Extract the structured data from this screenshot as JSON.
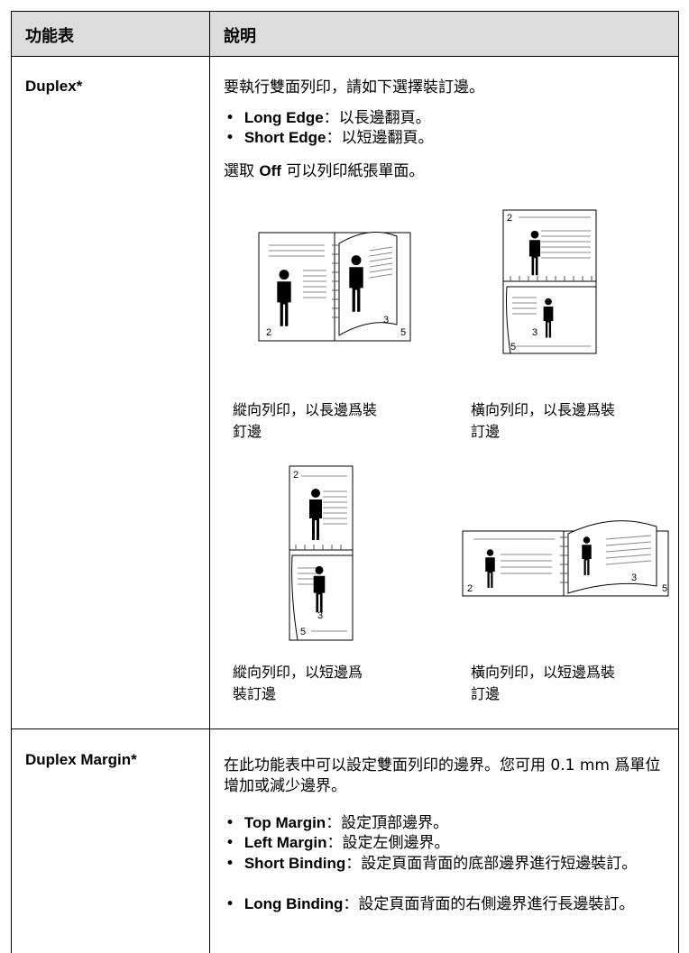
{
  "table": {
    "headers": [
      "功能表",
      "說明"
    ],
    "rows": [
      {
        "feature": "Duplex*",
        "intro": "要執行雙面列印，請如下選擇裝訂邊。",
        "bullets": [
          {
            "term": "Long Edge",
            "text": "：以長邊翻頁。"
          },
          {
            "term": "Short Edge",
            "text": "：以短邊翻頁。"
          }
        ],
        "note": [
          "選取 ",
          "Off",
          " 可以列印紙張單面。"
        ],
        "figures": [
          {
            "caption": [
              "縱向列印，以長邊爲裝",
              "釘邊"
            ],
            "page_numbers": [
              "2",
              "3",
              "5"
            ]
          },
          {
            "caption": [
              "橫向列印，以長邊爲裝",
              "訂邊"
            ],
            "page_numbers": [
              "2",
              "3",
              "5"
            ]
          },
          {
            "caption": [
              "縱向列印，以短邊爲",
              "裝訂邊"
            ],
            "page_numbers": [
              "2",
              "3",
              "5"
            ]
          },
          {
            "caption": [
              "橫向列印，以短邊爲裝",
              "訂邊"
            ],
            "page_numbers": [
              "2",
              "3",
              "5"
            ]
          }
        ]
      },
      {
        "feature": "Duplex Margin*",
        "intro": "在此功能表中可以設定雙面列印的邊界。您可用 0.1 mm 爲單位增加或減少邊界。",
        "bullets": [
          {
            "term": "Top Margin",
            "text": "：設定頂部邊界。"
          },
          {
            "term": "Left Margin",
            "text": "：設定左側邊界。"
          },
          {
            "term": "Short Binding",
            "text": "：設定頁面背面的底部邊界進行短邊裝訂。"
          },
          {
            "term": "Long Binding",
            "text": "：設定頁面背面的右側邊界進行長邊裝訂。"
          }
        ]
      }
    ]
  }
}
